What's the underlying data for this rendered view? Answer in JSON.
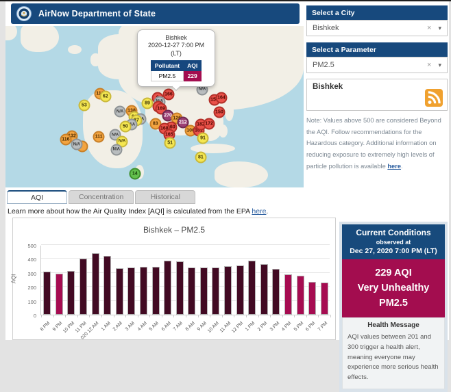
{
  "header": {
    "title": "AirNow Department of State",
    "logo": "department-of-state-seal"
  },
  "sidebar": {
    "city": {
      "header": "Select a City",
      "value": "Bishkek",
      "clear_icon": "×",
      "caret_icon": "▾"
    },
    "parameter": {
      "header": "Select a Parameter",
      "value": "PM2.5",
      "clear_icon": "×",
      "caret_icon": "▾"
    },
    "feed": {
      "title": "Bishkek",
      "icon": "rss-icon"
    },
    "note": {
      "text": "Note: Values above 500 are considered Beyond the AQI. Follow recommendations for the Hazardous category. Additional information on reducing exposure to extremely high levels of particle pollution is available ",
      "link_text": "here",
      "suffix": "."
    }
  },
  "map": {
    "popup": {
      "city": "Bishkek",
      "datetime": "2020-12-27 7:00 PM",
      "tz": "(LT)",
      "table": {
        "col_pollutant": "Pollutant",
        "col_aqi": "AQI",
        "pollutant": "PM2.5",
        "aqi": "229"
      }
    },
    "markers": [
      {
        "x": 26.4,
        "y": 49.1,
        "label": "53",
        "color": "yellow"
      },
      {
        "x": 31.7,
        "y": 41.9,
        "label": "116",
        "color": "orange"
      },
      {
        "x": 33.5,
        "y": 43.6,
        "label": "62",
        "color": "yellow"
      },
      {
        "x": 22.3,
        "y": 68.4,
        "label": "132",
        "color": "orange"
      },
      {
        "x": 20.2,
        "y": 70.5,
        "label": "116",
        "color": "orange"
      },
      {
        "x": 25.7,
        "y": 74.5,
        "label": "",
        "color": "orange"
      },
      {
        "x": 23.9,
        "y": 73.5,
        "label": "N/A",
        "color": "gray"
      },
      {
        "x": 31.3,
        "y": 68.8,
        "label": "111",
        "color": "orange"
      },
      {
        "x": 47.6,
        "y": 47.9,
        "label": "89",
        "color": "yellow"
      },
      {
        "x": 38.4,
        "y": 53.0,
        "label": "N/A",
        "color": "gray"
      },
      {
        "x": 42.3,
        "y": 52.6,
        "label": "138",
        "color": "orange"
      },
      {
        "x": 43.2,
        "y": 56.4,
        "label": "80",
        "color": "yellow"
      },
      {
        "x": 45.3,
        "y": 57.7,
        "label": "N/A",
        "color": "gray"
      },
      {
        "x": 43.9,
        "y": 58.5,
        "label": "87",
        "color": "yellow"
      },
      {
        "x": 42.3,
        "y": 61.1,
        "label": "N/A",
        "color": "gray"
      },
      {
        "x": 40.2,
        "y": 62.4,
        "label": "50",
        "color": "yellow"
      },
      {
        "x": 36.8,
        "y": 67.5,
        "label": "N/A",
        "color": "gray"
      },
      {
        "x": 39.1,
        "y": 71.4,
        "label": "N/A",
        "color": "yellow"
      },
      {
        "x": 37.2,
        "y": 76.5,
        "label": "N/A",
        "color": "gray"
      },
      {
        "x": 43.4,
        "y": 91.5,
        "label": "14",
        "color": "green"
      },
      {
        "x": 51.0,
        "y": 44.6,
        "label": "9",
        "color": "red"
      },
      {
        "x": 54.7,
        "y": 42.3,
        "label": "166",
        "color": "red"
      },
      {
        "x": 51.7,
        "y": 47.0,
        "label": "N/A",
        "color": "gray"
      },
      {
        "x": 51.3,
        "y": 50.0,
        "label": "",
        "color": "red"
      },
      {
        "x": 52.2,
        "y": 51.3,
        "label": "169",
        "color": "red"
      },
      {
        "x": 54.5,
        "y": 55.6,
        "label": "270",
        "color": "purple"
      },
      {
        "x": 57.5,
        "y": 57.3,
        "label": "126",
        "color": "orange"
      },
      {
        "x": 59.5,
        "y": 59.8,
        "label": "212",
        "color": "purple"
      },
      {
        "x": 50.3,
        "y": 60.7,
        "label": "83",
        "color": "orange"
      },
      {
        "x": 55.6,
        "y": 62.8,
        "label": "160",
        "color": "red"
      },
      {
        "x": 53.3,
        "y": 63.7,
        "label": "168",
        "color": "red"
      },
      {
        "x": 54.9,
        "y": 67.5,
        "label": "165",
        "color": "red"
      },
      {
        "x": 55.2,
        "y": 72.6,
        "label": "51",
        "color": "yellow"
      },
      {
        "x": 62.1,
        "y": 65.0,
        "label": "106",
        "color": "orange"
      },
      {
        "x": 64.8,
        "y": 65.0,
        "label": "161",
        "color": "red"
      },
      {
        "x": 65.5,
        "y": 61.1,
        "label": "182",
        "color": "red"
      },
      {
        "x": 68.3,
        "y": 60.7,
        "label": "172",
        "color": "red"
      },
      {
        "x": 66.2,
        "y": 69.7,
        "label": "91",
        "color": "yellow"
      },
      {
        "x": 65.5,
        "y": 81.2,
        "label": "81",
        "color": "yellow"
      },
      {
        "x": 66.0,
        "y": 39.3,
        "label": "N/A",
        "color": "gray"
      },
      {
        "x": 70.1,
        "y": 45.7,
        "label": "154",
        "color": "red"
      },
      {
        "x": 72.4,
        "y": 44.4,
        "label": "164",
        "color": "red"
      },
      {
        "x": 71.7,
        "y": 53.4,
        "label": "150",
        "color": "red"
      }
    ]
  },
  "tabs": [
    {
      "label": "AQI",
      "active": true
    },
    {
      "label": "Concentration",
      "active": false
    },
    {
      "label": "Historical",
      "active": false
    }
  ],
  "learn_more": {
    "text": "Learn more about how the Air Quality Index [AQI] is calculated from the EPA ",
    "link_text": "here",
    "suffix": "."
  },
  "chart_data": {
    "type": "bar",
    "title": "Bishkek – PM2.5",
    "xlabel": "",
    "ylabel": "AQI",
    "ylim": [
      0,
      500
    ],
    "yticks": [
      0,
      100,
      200,
      300,
      400,
      500
    ],
    "grid": true,
    "legend": "none",
    "threshold": 300,
    "colors": {
      "above_threshold": "#420a23",
      "below_threshold": "#a60c51"
    },
    "categories": [
      "8 PM",
      "9 PM",
      "10 PM",
      "11 PM",
      "020 12 AM",
      "1 AM",
      "2 AM",
      "3 AM",
      "4 AM",
      "5 AM",
      "6 AM",
      "7 AM",
      "8 AM",
      "9 AM",
      "10 AM",
      "11 AM",
      "12 PM",
      "1 PM",
      "2 PM",
      "3 PM",
      "4 PM",
      "5 PM",
      "6 PM",
      "7 PM"
    ],
    "values": [
      310,
      295,
      315,
      400,
      440,
      420,
      335,
      338,
      342,
      345,
      385,
      382,
      340,
      336,
      338,
      350,
      355,
      385,
      365,
      330,
      290,
      278,
      235,
      229
    ]
  },
  "current_conditions": {
    "header": "Current Conditions",
    "observed_at_label": "observed at",
    "observed_at": "Dec 27, 2020 7:00 PM (LT)",
    "aqi_line": "229 AQI",
    "category": "Very Unhealthy",
    "pollutant": "PM2.5",
    "health_header": "Health Message",
    "health_text": "AQI values between 201 and 300 trigger a health alert, meaning everyone may experience more serious health effects."
  },
  "colors": {
    "header_blue": "#17497d",
    "aqi_crimson": "#a30d4f",
    "map_water": "#b4d9e6",
    "map_land": "#f2efe6"
  }
}
